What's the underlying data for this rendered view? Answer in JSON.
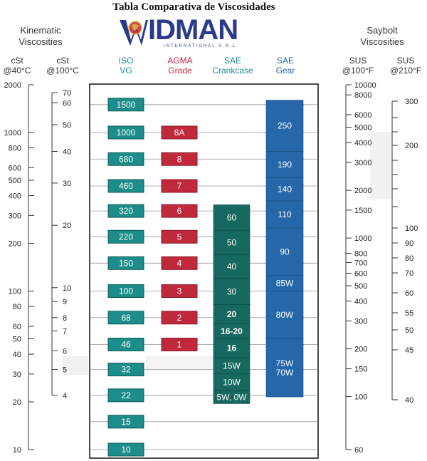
{
  "title": "Tabla Comparativa de Viscosidades",
  "logo": {
    "text": "IDMAN",
    "subtitle": "INTERNATIONAL S.R.L."
  },
  "headers": {
    "kinematic": "Kinematic\nViscosities",
    "saybolt": "Saybolt\nViscosities",
    "cst40": "cSt\n@40°C",
    "cst100": "cSt\n@100°C",
    "iso": "ISO\nVG",
    "agma": "AGMA\nGrade",
    "sae_crank": "SAE\nCrankcase",
    "sae_gear": "SAE\nGear",
    "sus100": "SUS\n@100°F",
    "sus210": "SUS\n@210°F"
  },
  "colors": {
    "teal": "#1c8d8b",
    "red": "#c0283c",
    "blue": "#2567a8",
    "dark_teal": "#17685f"
  },
  "chart_data": {
    "type": "table",
    "axes": {
      "cst40": {
        "scale": "log",
        "range": [
          10,
          2000
        ],
        "ticks": [
          2000,
          1000,
          800,
          600,
          500,
          400,
          300,
          200,
          100,
          80,
          60,
          50,
          40,
          30,
          20,
          10
        ]
      },
      "cst100": {
        "range": [
          4,
          70
        ],
        "ticks": [
          70,
          60,
          50,
          40,
          30,
          20,
          10,
          9,
          8,
          7,
          6,
          5,
          4
        ]
      },
      "sus100": {
        "range": [
          60,
          10000
        ],
        "ticks": [
          10000,
          8000,
          6000,
          5000,
          4000,
          3000,
          2000,
          1500,
          1000,
          800,
          700,
          600,
          500,
          400,
          300,
          200,
          150,
          100,
          60
        ]
      },
      "sus210": {
        "range": [
          40,
          300
        ],
        "ticks": [
          300,
          200,
          100,
          90,
          80,
          70,
          60,
          55,
          50,
          45,
          40
        ]
      }
    },
    "iso_vg": [
      1500,
      1000,
      680,
      460,
      320,
      220,
      150,
      100,
      68,
      46,
      32,
      22,
      15,
      10
    ],
    "agma": [
      {
        "grade": "8A",
        "cst40": 1000
      },
      {
        "grade": "8",
        "cst40": 680
      },
      {
        "grade": "7",
        "cst40": 460
      },
      {
        "grade": "6",
        "cst40": 320
      },
      {
        "grade": "5",
        "cst40": 220
      },
      {
        "grade": "4",
        "cst40": 150
      },
      {
        "grade": "3",
        "cst40": 100
      },
      {
        "grade": "2",
        "cst40": 68
      },
      {
        "grade": "1",
        "cst40": 46
      }
    ],
    "sae_crankcase": [
      {
        "grade": "60",
        "cst40_range": [
          240,
          350
        ]
      },
      {
        "grade": "50",
        "cst40_range": [
          170,
          240
        ]
      },
      {
        "grade": "40",
        "cst40_range": [
          120,
          170
        ]
      },
      {
        "grade": "30",
        "cst40_range": [
          82,
          120
        ]
      },
      {
        "grade": "20",
        "cst40_range": [
          62,
          82
        ]
      },
      {
        "grade": "16-20",
        "cst40_range": [
          50,
          62
        ]
      },
      {
        "grade": "16",
        "cst40_range": [
          38,
          50
        ]
      },
      {
        "grade": "15W",
        "cst40_range": [
          30,
          38
        ]
      },
      {
        "grade": "10W",
        "cst40_range": [
          23.5,
          30
        ]
      },
      {
        "grade": "5W, 0W",
        "cst40_range": [
          19.5,
          23.5
        ]
      }
    ],
    "sae_gear": [
      {
        "grade": "250",
        "cst40_range": [
          760,
          1600
        ]
      },
      {
        "grade": "190",
        "cst40_range": [
          520,
          760
        ]
      },
      {
        "grade": "140",
        "cst40_range": [
          370,
          520
        ]
      },
      {
        "grade": "110",
        "cst40_range": [
          250,
          370
        ]
      },
      {
        "grade": "90",
        "cst40_range": [
          125,
          250
        ]
      },
      {
        "grade": "85W",
        "cst40_range": [
          100,
          125
        ]
      },
      {
        "grade": "80W",
        "cst40_range": [
          50,
          100
        ]
      },
      {
        "grade": "75W\n70W",
        "cst40_range": [
          21.5,
          50
        ]
      }
    ]
  }
}
